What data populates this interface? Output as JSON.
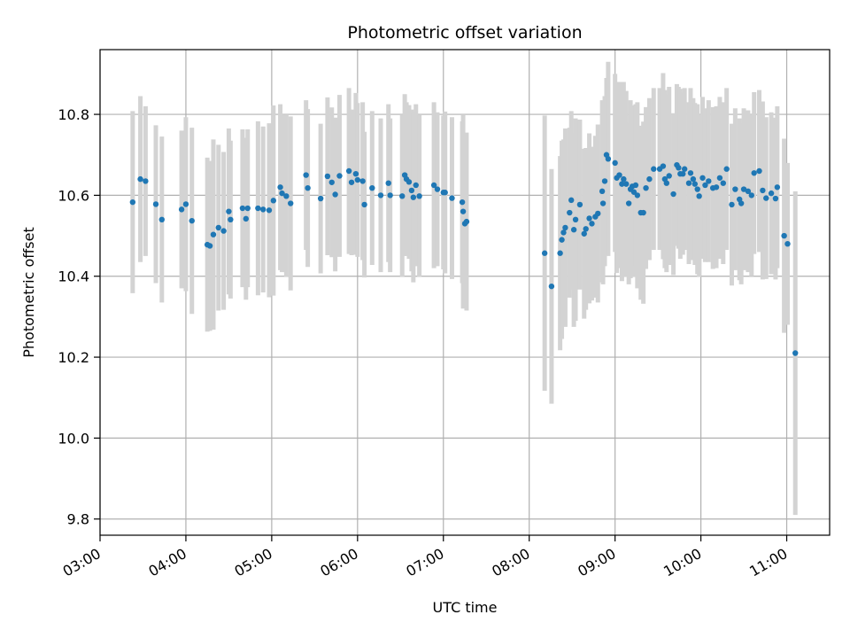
{
  "chart_data": {
    "type": "scatter",
    "title": "Photometric offset variation",
    "xlabel": "UTC time",
    "ylabel": "Photometric offset",
    "x_unit": "UTC hour",
    "xlim": [
      3.0,
      11.5
    ],
    "ylim": [
      9.76,
      10.96
    ],
    "xticks": [
      3,
      4,
      5,
      6,
      7,
      8,
      9,
      10,
      11
    ],
    "xtick_labels": [
      "03:00",
      "04:00",
      "05:00",
      "06:00",
      "07:00",
      "08:00",
      "09:00",
      "10:00",
      "11:00"
    ],
    "yticks": [
      9.8,
      10.0,
      10.2,
      10.4,
      10.6,
      10.8
    ],
    "ytick_labels": [
      "9.8",
      "10.0",
      "10.2",
      "10.4",
      "10.6",
      "10.8"
    ],
    "grid": true,
    "point_color": "#1f77b4",
    "errorbar_color": "#d3d3d3",
    "points": [
      [
        3.38,
        10.583,
        0.225
      ],
      [
        3.47,
        10.64,
        0.205
      ],
      [
        3.53,
        10.635,
        0.185
      ],
      [
        3.65,
        10.578,
        0.195
      ],
      [
        3.72,
        10.54,
        0.205
      ],
      [
        3.95,
        10.565,
        0.195
      ],
      [
        4.0,
        10.578,
        0.215
      ],
      [
        4.07,
        10.537,
        0.23
      ],
      [
        4.25,
        10.478,
        0.215
      ],
      [
        4.28,
        10.475,
        0.21
      ],
      [
        4.32,
        10.503,
        0.235
      ],
      [
        4.38,
        10.52,
        0.205
      ],
      [
        4.44,
        10.512,
        0.195
      ],
      [
        4.5,
        10.56,
        0.205
      ],
      [
        4.52,
        10.54,
        0.195
      ],
      [
        4.66,
        10.568,
        0.195
      ],
      [
        4.7,
        10.542,
        0.2
      ],
      [
        4.72,
        10.568,
        0.195
      ],
      [
        4.84,
        10.568,
        0.215
      ],
      [
        4.9,
        10.565,
        0.205
      ],
      [
        4.97,
        10.563,
        0.215
      ],
      [
        5.02,
        10.587,
        0.235
      ],
      [
        5.1,
        10.62,
        0.205
      ],
      [
        5.12,
        10.605,
        0.195
      ],
      [
        5.17,
        10.598,
        0.2
      ],
      [
        5.22,
        10.58,
        0.215
      ],
      [
        5.4,
        10.65,
        0.185
      ],
      [
        5.42,
        10.618,
        0.195
      ],
      [
        5.57,
        10.592,
        0.185
      ],
      [
        5.65,
        10.647,
        0.195
      ],
      [
        5.7,
        10.632,
        0.185
      ],
      [
        5.74,
        10.602,
        0.19
      ],
      [
        5.79,
        10.648,
        0.2
      ],
      [
        5.9,
        10.66,
        0.205
      ],
      [
        5.93,
        10.632,
        0.18
      ],
      [
        5.98,
        10.653,
        0.2
      ],
      [
        6.0,
        10.638,
        0.19
      ],
      [
        6.06,
        10.635,
        0.195
      ],
      [
        6.08,
        10.577,
        0.18
      ],
      [
        6.17,
        10.618,
        0.19
      ],
      [
        6.27,
        10.6,
        0.19
      ],
      [
        6.36,
        10.63,
        0.195
      ],
      [
        6.38,
        10.6,
        0.19
      ],
      [
        6.52,
        10.598,
        0.2
      ],
      [
        6.55,
        10.65,
        0.2
      ],
      [
        6.57,
        10.64,
        0.19
      ],
      [
        6.6,
        10.633,
        0.19
      ],
      [
        6.63,
        10.612,
        0.2
      ],
      [
        6.65,
        10.595,
        0.21
      ],
      [
        6.68,
        10.625,
        0.2
      ],
      [
        6.72,
        10.598,
        0.2
      ],
      [
        6.89,
        10.625,
        0.205
      ],
      [
        6.93,
        10.615,
        0.19
      ],
      [
        7.0,
        10.607,
        0.19
      ],
      [
        7.02,
        10.607,
        0.2
      ],
      [
        7.1,
        10.593,
        0.2
      ],
      [
        7.22,
        10.583,
        0.2
      ],
      [
        7.23,
        10.56,
        0.24
      ],
      [
        7.25,
        10.53,
        0.19
      ],
      [
        7.27,
        10.535,
        0.22
      ],
      [
        8.18,
        10.457,
        0.34
      ],
      [
        8.26,
        10.375,
        0.29
      ],
      [
        8.36,
        10.457,
        0.24
      ],
      [
        8.38,
        10.49,
        0.245
      ],
      [
        8.4,
        10.508,
        0.23
      ],
      [
        8.42,
        10.52,
        0.245
      ],
      [
        8.47,
        10.557,
        0.21
      ],
      [
        8.49,
        10.588,
        0.22
      ],
      [
        8.52,
        10.515,
        0.24
      ],
      [
        8.54,
        10.54,
        0.25
      ],
      [
        8.59,
        10.577,
        0.21
      ],
      [
        8.64,
        10.505,
        0.21
      ],
      [
        8.66,
        10.517,
        0.2
      ],
      [
        8.7,
        10.543,
        0.21
      ],
      [
        8.73,
        10.53,
        0.19
      ],
      [
        8.77,
        10.547,
        0.2
      ],
      [
        8.8,
        10.555,
        0.22
      ],
      [
        8.85,
        10.61,
        0.225
      ],
      [
        8.86,
        10.58,
        0.2
      ],
      [
        8.88,
        10.635,
        0.21
      ],
      [
        8.9,
        10.7,
        0.19
      ],
      [
        8.92,
        10.69,
        0.24
      ],
      [
        9.0,
        10.68,
        0.22
      ],
      [
        9.02,
        10.643,
        0.235
      ],
      [
        9.05,
        10.65,
        0.23
      ],
      [
        9.08,
        10.628,
        0.24
      ],
      [
        9.1,
        10.64,
        0.24
      ],
      [
        9.13,
        10.628,
        0.23
      ],
      [
        9.16,
        10.58,
        0.2
      ],
      [
        9.18,
        10.615,
        0.22
      ],
      [
        9.2,
        10.622,
        0.2
      ],
      [
        9.22,
        10.608,
        0.21
      ],
      [
        9.24,
        10.625,
        0.2
      ],
      [
        9.26,
        10.6,
        0.23
      ],
      [
        9.3,
        10.557,
        0.215
      ],
      [
        9.33,
        10.557,
        0.225
      ],
      [
        9.36,
        10.618,
        0.2
      ],
      [
        9.4,
        10.64,
        0.2
      ],
      [
        9.45,
        10.665,
        0.2
      ],
      [
        9.52,
        10.665,
        0.2
      ],
      [
        9.56,
        10.672,
        0.23
      ],
      [
        9.58,
        10.64,
        0.22
      ],
      [
        9.6,
        10.63,
        0.22
      ],
      [
        9.63,
        10.648,
        0.22
      ],
      [
        9.68,
        10.603,
        0.2
      ],
      [
        9.72,
        10.675,
        0.2
      ],
      [
        9.74,
        10.668,
        0.2
      ],
      [
        9.76,
        10.653,
        0.21
      ],
      [
        9.79,
        10.653,
        0.2
      ],
      [
        9.81,
        10.665,
        0.2
      ],
      [
        9.86,
        10.63,
        0.2
      ],
      [
        9.88,
        10.655,
        0.21
      ],
      [
        9.91,
        10.64,
        0.2
      ],
      [
        9.93,
        10.628,
        0.2
      ],
      [
        9.96,
        10.615,
        0.21
      ],
      [
        9.98,
        10.598,
        0.2
      ],
      [
        10.02,
        10.643,
        0.2
      ],
      [
        10.05,
        10.625,
        0.19
      ],
      [
        10.09,
        10.635,
        0.2
      ],
      [
        10.14,
        10.618,
        0.2
      ],
      [
        10.18,
        10.62,
        0.2
      ],
      [
        10.22,
        10.643,
        0.2
      ],
      [
        10.26,
        10.63,
        0.2
      ],
      [
        10.3,
        10.665,
        0.2
      ],
      [
        10.36,
        10.577,
        0.2
      ],
      [
        10.4,
        10.615,
        0.2
      ],
      [
        10.45,
        10.59,
        0.2
      ],
      [
        10.47,
        10.58,
        0.2
      ],
      [
        10.5,
        10.615,
        0.2
      ],
      [
        10.55,
        10.61,
        0.2
      ],
      [
        10.59,
        10.6,
        0.2
      ],
      [
        10.62,
        10.655,
        0.2
      ],
      [
        10.68,
        10.66,
        0.2
      ],
      [
        10.72,
        10.612,
        0.22
      ],
      [
        10.76,
        10.593,
        0.2
      ],
      [
        10.82,
        10.605,
        0.2
      ],
      [
        10.87,
        10.592,
        0.2
      ],
      [
        10.89,
        10.62,
        0.2
      ],
      [
        10.97,
        10.5,
        0.24
      ],
      [
        11.01,
        10.48,
        0.2
      ],
      [
        11.1,
        10.21,
        0.4
      ]
    ]
  }
}
